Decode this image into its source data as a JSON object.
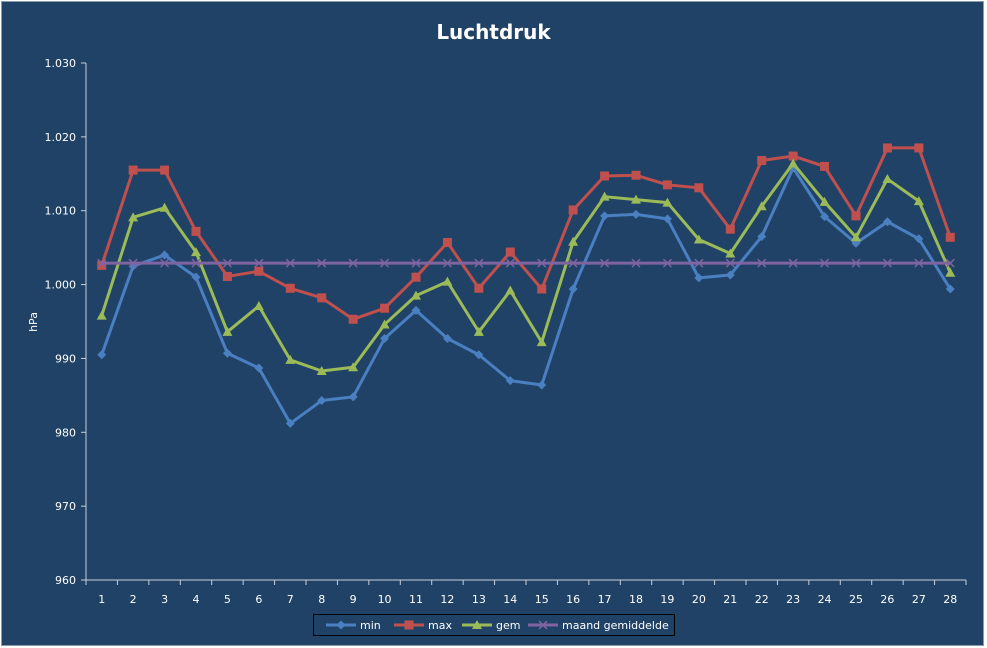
{
  "chart_data": {
    "type": "line",
    "title": "Luchtdruk",
    "ylabel": "hPa",
    "xlabel": "",
    "ylim": [
      960,
      1030
    ],
    "yticks": [
      960,
      970,
      980,
      990,
      1000,
      1010,
      1020,
      1030
    ],
    "ytick_labels": [
      "960",
      "970",
      "980",
      "990",
      "1.000",
      "1.010",
      "1.020",
      "1.030"
    ],
    "categories": [
      "1",
      "2",
      "3",
      "4",
      "5",
      "6",
      "7",
      "8",
      "9",
      "10",
      "11",
      "12",
      "13",
      "14",
      "15",
      "16",
      "17",
      "18",
      "19",
      "20",
      "21",
      "22",
      "23",
      "24",
      "25",
      "26",
      "27",
      "28"
    ],
    "grid": false,
    "legend_position": "bottom",
    "series": [
      {
        "name": "min",
        "color": "#4a7fc1",
        "marker": "diamond",
        "values": [
          990.5,
          1002.5,
          1004.0,
          1001.0,
          990.7,
          988.7,
          981.2,
          984.3,
          984.8,
          992.7,
          996.5,
          992.7,
          990.5,
          987.0,
          986.4,
          999.4,
          1009.3,
          1009.5,
          1008.9,
          1000.9,
          1001.3,
          1006.5,
          1015.8,
          1009.2,
          1005.6,
          1008.5,
          1006.2,
          999.4
        ]
      },
      {
        "name": "max",
        "color": "#c0504d",
        "marker": "square",
        "values": [
          1002.6,
          1015.5,
          1015.5,
          1007.2,
          1001.1,
          1001.8,
          999.5,
          998.2,
          995.3,
          996.8,
          1001.0,
          1005.7,
          999.5,
          1004.4,
          999.4,
          1010.1,
          1014.7,
          1014.8,
          1013.5,
          1013.1,
          1007.5,
          1016.8,
          1017.4,
          1016.0,
          1009.3,
          1018.5,
          1018.5,
          1006.4
        ]
      },
      {
        "name": "gem",
        "color": "#9bbb59",
        "marker": "triangle",
        "values": [
          995.8,
          1009.1,
          1010.4,
          1004.4,
          993.6,
          997.1,
          989.8,
          988.3,
          988.8,
          994.6,
          998.5,
          1000.4,
          993.6,
          999.2,
          992.2,
          1005.8,
          1011.9,
          1011.5,
          1011.1,
          1006.1,
          1004.2,
          1010.6,
          1016.4,
          1011.2,
          1006.4,
          1014.3,
          1011.3,
          1001.6
        ]
      },
      {
        "name": "maand gemiddelde",
        "color": "#8064a2",
        "marker": "x",
        "values": [
          1002.9,
          1002.9,
          1002.9,
          1002.9,
          1002.9,
          1002.9,
          1002.9,
          1002.9,
          1002.9,
          1002.9,
          1002.9,
          1002.9,
          1002.9,
          1002.9,
          1002.9,
          1002.9,
          1002.9,
          1002.9,
          1002.9,
          1002.9,
          1002.9,
          1002.9,
          1002.9,
          1002.9,
          1002.9,
          1002.9,
          1002.9,
          1002.9
        ]
      }
    ]
  }
}
